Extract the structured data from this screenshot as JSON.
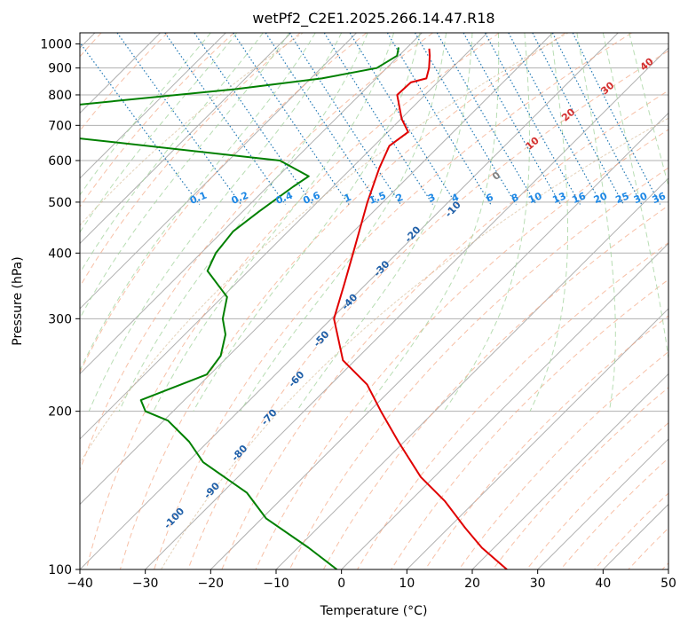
{
  "chart_data": {
    "type": "line",
    "subtype": "skew-t-log-p",
    "title": "wetPf2_C2E1.2025.266.14.47.R18",
    "xlabel": "Temperature (°C)",
    "ylabel": "Pressure (hPa)",
    "xlim": [
      -40,
      50
    ],
    "ylim": [
      1050,
      100
    ],
    "y_scale": "log",
    "x_ticks": [
      "−40",
      "−30",
      "−20",
      "−10",
      "0",
      "10",
      "20",
      "30",
      "40",
      "50"
    ],
    "x_tick_values": [
      -40,
      -30,
      -20,
      -10,
      0,
      10,
      20,
      30,
      40,
      50
    ],
    "y_ticks": [
      "100",
      "200",
      "300",
      "400",
      "500",
      "600",
      "700",
      "800",
      "900",
      "1000"
    ],
    "y_tick_values": [
      100,
      200,
      300,
      400,
      500,
      600,
      700,
      800,
      900,
      1000
    ],
    "grid": true,
    "colors": {
      "temperature": "#e00000",
      "dewpoint": "#008000",
      "isotherm": "#b0b0b0",
      "dry_adiabat": "#f4a582",
      "moist_adiabat": "#a6d4a0",
      "mixing_ratio": "#1f77b4",
      "mixing_label": "#1e88e5",
      "isotherm_label": "#1f5fa8",
      "theta_label": "#d32f2f",
      "grey_label": "#808080",
      "lcl_curve": "#d2b48c"
    },
    "isotherm_labels": [
      {
        "text": "-100",
        "T": -100,
        "p": 124
      },
      {
        "text": "-90",
        "T": -90,
        "p": 140
      },
      {
        "text": "-80",
        "T": -80,
        "p": 165
      },
      {
        "text": "-70",
        "T": -70,
        "p": 193
      },
      {
        "text": "-60",
        "T": -60,
        "p": 228
      },
      {
        "text": "-50",
        "T": -50,
        "p": 272
      },
      {
        "text": "-40",
        "T": -40,
        "p": 320
      },
      {
        "text": "-30",
        "T": -30,
        "p": 370
      },
      {
        "text": "-20",
        "T": -20,
        "p": 430
      },
      {
        "text": "-10",
        "T": -10,
        "p": 480
      }
    ],
    "mixing_ratio_labels": [
      "0.1",
      "0.2",
      "0.4",
      "0.6",
      "1",
      "1.5",
      "2",
      "3",
      "4",
      "6",
      "8",
      "10",
      "13",
      "16",
      "20",
      "25",
      "30",
      "36"
    ],
    "mixing_ratio_values": [
      0.1,
      0.2,
      0.4,
      0.6,
      1,
      1.5,
      2,
      3,
      4,
      6,
      8,
      10,
      13,
      16,
      20,
      25,
      30,
      36
    ],
    "theta_labels": [
      {
        "text": "0",
        "T": 24,
        "p": 555
      },
      {
        "text": "10",
        "T": 29.5,
        "p": 640
      },
      {
        "text": "20",
        "T": 35,
        "p": 725
      },
      {
        "text": "30",
        "T": 41,
        "p": 815
      },
      {
        "text": "40",
        "T": 47,
        "p": 905
      }
    ],
    "series": [
      {
        "name": "",
        "role": "temperature",
        "points": [
          [
            -57,
            100
          ],
          [
            -57.5,
            110
          ],
          [
            -57,
            120
          ],
          [
            -56,
            135
          ],
          [
            -56,
            150
          ],
          [
            -54,
            175
          ],
          [
            -52,
            200
          ],
          [
            -50,
            225
          ],
          [
            -50,
            250
          ],
          [
            -45,
            300
          ],
          [
            -38,
            350
          ],
          [
            -32,
            400
          ],
          [
            -22,
            500
          ],
          [
            -15,
            580
          ],
          [
            -10,
            640
          ],
          [
            -5,
            680
          ],
          [
            -4,
            720
          ],
          [
            -1,
            800
          ],
          [
            3,
            845
          ],
          [
            6,
            860
          ],
          [
            8,
            900
          ],
          [
            10,
            950
          ],
          [
            11,
            980
          ]
        ]
      },
      {
        "name": "",
        "role": "dewpoint",
        "points": [
          [
            -83,
            100
          ],
          [
            -84,
            110
          ],
          [
            -86,
            125
          ],
          [
            -85,
            140
          ],
          [
            -87,
            160
          ],
          [
            -86,
            175
          ],
          [
            -86,
            192
          ],
          [
            -88,
            200
          ],
          [
            -87,
            210
          ],
          [
            -73,
            235
          ],
          [
            -68,
            255
          ],
          [
            -64,
            280
          ],
          [
            -62,
            300
          ],
          [
            -58,
            330
          ],
          [
            -57,
            370
          ],
          [
            -53,
            400
          ],
          [
            -47,
            440
          ],
          [
            -40,
            480
          ],
          [
            -31,
            535
          ],
          [
            -27,
            560
          ],
          [
            -29,
            600
          ],
          [
            -60,
            670
          ],
          [
            -106,
            700
          ],
          [
            -68,
            730
          ],
          [
            -52,
            765
          ],
          [
            -25,
            820
          ],
          [
            -10,
            860
          ],
          [
            0,
            900
          ],
          [
            5,
            950
          ],
          [
            6.5,
            985
          ]
        ]
      }
    ]
  }
}
